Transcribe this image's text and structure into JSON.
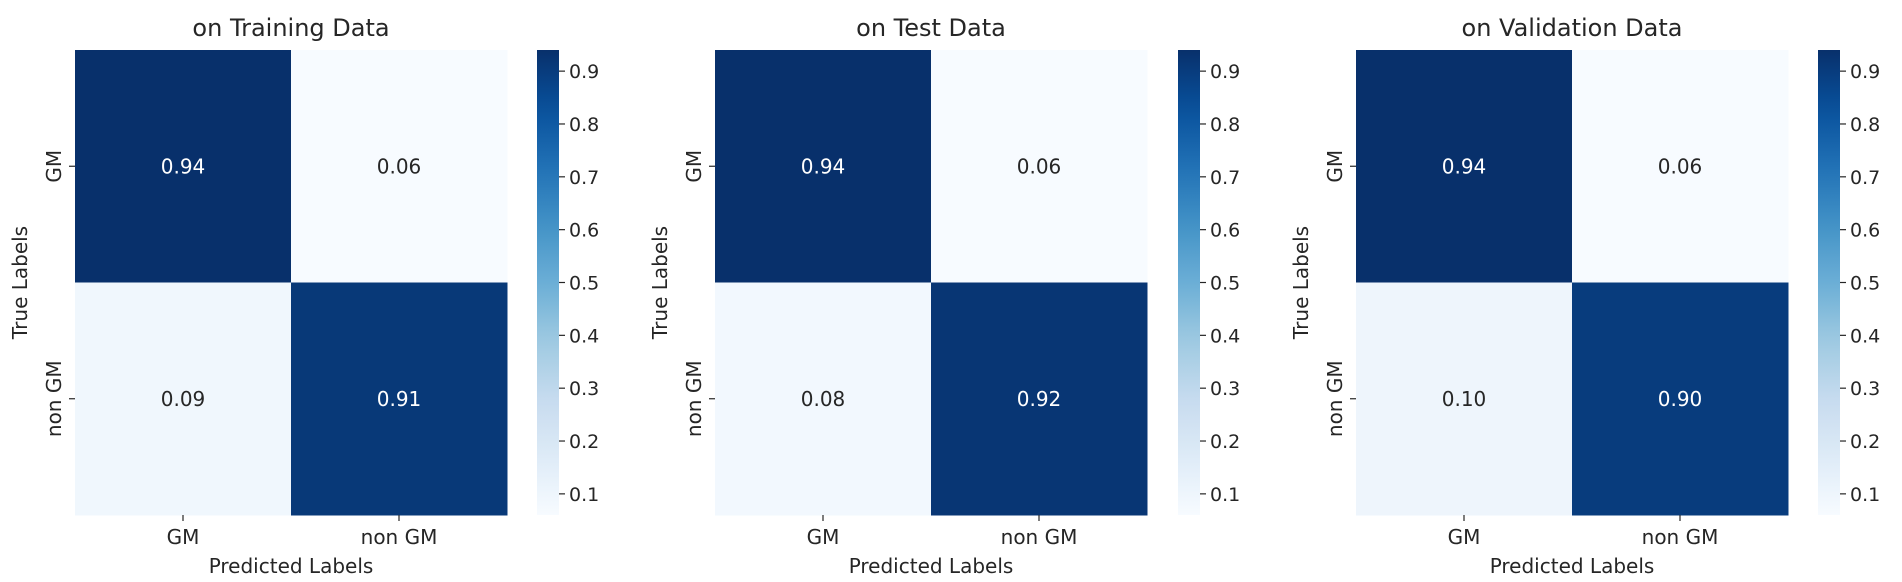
{
  "chart_data": [
    {
      "type": "heatmap",
      "title": "on Training Data",
      "xlabel": "Predicted Labels",
      "ylabel": "True Labels",
      "x_categories": [
        "GM",
        "non GM"
      ],
      "y_categories": [
        "GM",
        "non GM"
      ],
      "values": [
        [
          0.94,
          0.06
        ],
        [
          0.09,
          0.91
        ]
      ],
      "value_labels": [
        [
          "0.94",
          "0.06"
        ],
        [
          "0.09",
          "0.91"
        ]
      ],
      "colorbar": {
        "min": 0.06,
        "max": 0.94,
        "ticks": [
          "0.1",
          "0.2",
          "0.3",
          "0.4",
          "0.5",
          "0.6",
          "0.7",
          "0.8",
          "0.9"
        ]
      },
      "colormap": "Blues"
    },
    {
      "type": "heatmap",
      "title": "on Test Data",
      "xlabel": "Predicted Labels",
      "ylabel": "True Labels",
      "x_categories": [
        "GM",
        "non GM"
      ],
      "y_categories": [
        "GM",
        "non GM"
      ],
      "values": [
        [
          0.94,
          0.06
        ],
        [
          0.08,
          0.92
        ]
      ],
      "value_labels": [
        [
          "0.94",
          "0.06"
        ],
        [
          "0.08",
          "0.92"
        ]
      ],
      "colorbar": {
        "min": 0.06,
        "max": 0.94,
        "ticks": [
          "0.1",
          "0.2",
          "0.3",
          "0.4",
          "0.5",
          "0.6",
          "0.7",
          "0.8",
          "0.9"
        ]
      },
      "colormap": "Blues"
    },
    {
      "type": "heatmap",
      "title": "on Validation Data",
      "xlabel": "Predicted Labels",
      "ylabel": "True Labels",
      "x_categories": [
        "GM",
        "non GM"
      ],
      "y_categories": [
        "GM",
        "non GM"
      ],
      "values": [
        [
          0.94,
          0.06
        ],
        [
          0.1,
          0.9
        ]
      ],
      "value_labels": [
        [
          "0.94",
          "0.06"
        ],
        [
          "0.10",
          "0.90"
        ]
      ],
      "colorbar": {
        "min": 0.06,
        "max": 0.94,
        "ticks": [
          "0.1",
          "0.2",
          "0.3",
          "0.4",
          "0.5",
          "0.6",
          "0.7",
          "0.8",
          "0.9"
        ]
      },
      "colormap": "Blues"
    }
  ]
}
